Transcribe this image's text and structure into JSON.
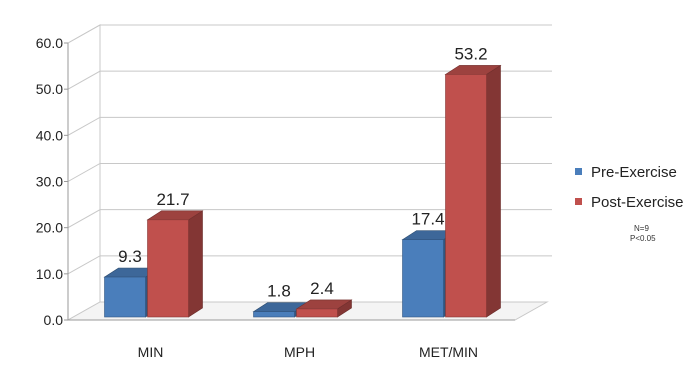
{
  "chart_data": {
    "type": "bar",
    "title": "",
    "xlabel": "",
    "ylabel": "",
    "ylim": [
      0,
      60
    ],
    "yticks": [
      "0.0",
      "10.0",
      "20.0",
      "30.0",
      "40.0",
      "50.0",
      "60.0"
    ],
    "categories": [
      "MIN",
      "MPH",
      "MET/MIN"
    ],
    "series": [
      {
        "name": "Pre-Exercise",
        "values": [
          9.3,
          1.8,
          17.4
        ],
        "labels": [
          "9.3",
          "1.8",
          "17.4"
        ],
        "color": "#4a7ebb"
      },
      {
        "name": "Post-Exercise",
        "values": [
          21.7,
          2.4,
          53.2
        ],
        "labels": [
          "21.7",
          "2.4",
          "53.2"
        ],
        "color": "#c0504d"
      }
    ],
    "grid": true,
    "three_d": true,
    "legend_position": "right"
  },
  "legend": {
    "items": [
      {
        "label": "Pre-Exercise",
        "color": "#4a7ebb"
      },
      {
        "label": "Post-Exercise",
        "color": "#c0504d"
      }
    ],
    "note_n": "N=9",
    "note_p": "P<0.05"
  }
}
